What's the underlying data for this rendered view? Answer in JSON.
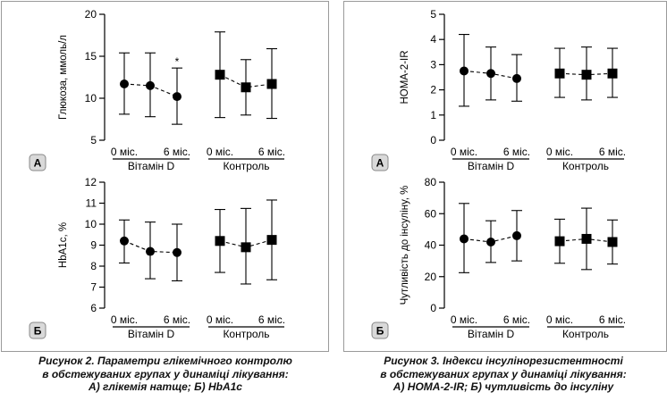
{
  "chart_data": [
    {
      "id": "fig2A",
      "panel_badge": "А",
      "type": "scatter",
      "ylabel": "Глюкоза, ммоль/л",
      "ylim": [
        5,
        20
      ],
      "yticks": [
        5,
        10,
        15,
        20
      ],
      "groups": [
        {
          "name": "Вітамін D",
          "marker": "circle",
          "x_labels": [
            "0 міс.",
            "6 міс."
          ],
          "points": [
            {
              "mean": 11.7,
              "low": 8.1,
              "high": 15.4
            },
            {
              "mean": 11.5,
              "low": 7.8,
              "high": 15.4
            },
            {
              "mean": 10.2,
              "low": 6.9,
              "high": 13.6,
              "mark": "*"
            }
          ]
        },
        {
          "name": "Контроль",
          "marker": "square",
          "x_labels": [
            "0 міс.",
            "6 міс."
          ],
          "points": [
            {
              "mean": 12.8,
              "low": 7.7,
              "high": 17.9
            },
            {
              "mean": 11.3,
              "low": 8.0,
              "high": 14.6
            },
            {
              "mean": 11.7,
              "low": 7.6,
              "high": 15.9
            }
          ]
        }
      ]
    },
    {
      "id": "fig2B",
      "panel_badge": "Б",
      "type": "scatter",
      "ylabel": "HbA1c, %",
      "ylim": [
        6,
        12
      ],
      "yticks": [
        6,
        7,
        8,
        9,
        10,
        11,
        12
      ],
      "groups": [
        {
          "name": "Вітамін D",
          "marker": "circle",
          "x_labels": [
            "0 міс.",
            "6 міс."
          ],
          "points": [
            {
              "mean": 9.2,
              "low": 8.15,
              "high": 10.2
            },
            {
              "mean": 8.7,
              "low": 7.4,
              "high": 10.1
            },
            {
              "mean": 8.65,
              "low": 7.3,
              "high": 10.0
            }
          ]
        },
        {
          "name": "Контроль",
          "marker": "square",
          "x_labels": [
            "0 міс.",
            "6 міс."
          ],
          "points": [
            {
              "mean": 9.2,
              "low": 7.7,
              "high": 10.7
            },
            {
              "mean": 8.9,
              "low": 7.15,
              "high": 10.75
            },
            {
              "mean": 9.25,
              "low": 7.35,
              "high": 11.15
            }
          ]
        }
      ]
    },
    {
      "id": "fig3A",
      "panel_badge": "А",
      "type": "scatter",
      "ylabel": "HOMA-2-IR",
      "ylim": [
        0,
        5
      ],
      "yticks": [
        0,
        1,
        2,
        3,
        4,
        5
      ],
      "groups": [
        {
          "name": "Вітамін D",
          "marker": "circle",
          "x_labels": [
            "0 міс.",
            "6 міс."
          ],
          "points": [
            {
              "mean": 2.75,
              "low": 1.35,
              "high": 4.2
            },
            {
              "mean": 2.65,
              "low": 1.6,
              "high": 3.7
            },
            {
              "mean": 2.45,
              "low": 1.55,
              "high": 3.4
            }
          ]
        },
        {
          "name": "Контроль",
          "marker": "square",
          "x_labels": [
            "0 міс.",
            "6 міс."
          ],
          "points": [
            {
              "mean": 2.65,
              "low": 1.7,
              "high": 3.65
            },
            {
              "mean": 2.6,
              "low": 1.6,
              "high": 3.7
            },
            {
              "mean": 2.65,
              "low": 1.7,
              "high": 3.65
            }
          ]
        }
      ]
    },
    {
      "id": "fig3B",
      "panel_badge": "Б",
      "type": "scatter",
      "ylabel": "Чутливість до інсуліну, %",
      "ylim": [
        0,
        80
      ],
      "yticks": [
        0,
        20,
        40,
        60,
        80
      ],
      "groups": [
        {
          "name": "Вітамін D",
          "marker": "circle",
          "x_labels": [
            "0 міс.",
            "6 міс."
          ],
          "points": [
            {
              "mean": 44,
              "low": 22.5,
              "high": 66.5
            },
            {
              "mean": 42,
              "low": 29,
              "high": 55.5
            },
            {
              "mean": 46,
              "low": 30,
              "high": 62
            }
          ]
        },
        {
          "name": "Контроль",
          "marker": "square",
          "x_labels": [
            "0 міс.",
            "6 міс."
          ],
          "points": [
            {
              "mean": 42.5,
              "low": 28.5,
              "high": 56.5
            },
            {
              "mean": 44,
              "low": 24.5,
              "high": 63.5
            },
            {
              "mean": 42,
              "low": 28,
              "high": 56
            }
          ]
        }
      ]
    }
  ],
  "captions": {
    "left": [
      "Рисунок 2. Параметри глікемічного контролю",
      "в обстежуваних групах у динаміці лікування:",
      "А) глікемія натще; Б) HbA1c"
    ],
    "right": [
      "Рисунок 3. Індекси інсулінорезистентності",
      "в обстежуваних групах у динаміці лікування:",
      "А) HOMA-2-IR; Б) чутливість до інсуліну"
    ]
  }
}
